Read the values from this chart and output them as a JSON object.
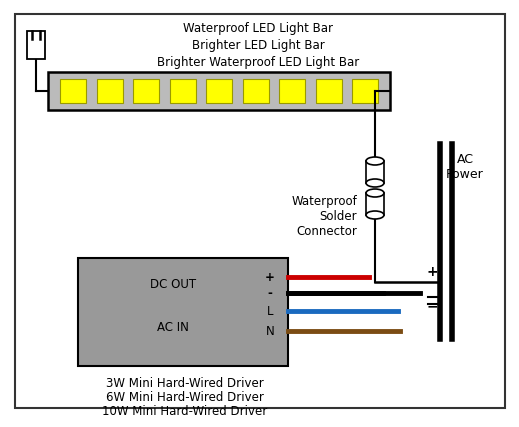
{
  "background_color": "#ffffff",
  "border_color": "#333333",
  "led_bar_label": [
    "Waterproof LED Light Bar",
    "Brighter LED Light Bar",
    "Brighter Waterproof LED Light Bar"
  ],
  "driver_label": [
    "3W Mini Hard-Wired Driver",
    "6W Mini Hard-Wired Driver",
    "10W Mini Hard-Wired Driver"
  ],
  "dc_out_label": "DC OUT",
  "ac_in_label": "AC IN",
  "driver_signs": [
    "+",
    "-",
    "L",
    "N"
  ],
  "ac_power_label": "AC\nPower",
  "waterproof_label": "Waterproof\nSolder\nConnector",
  "wire_colors": [
    "#cc0000",
    "#111111",
    "#1a6abf",
    "#7B4C13"
  ],
  "led_color": "#ffff00",
  "led_bar_fill": "#bbbbbb",
  "driver_fill": "#999999",
  "led_border_color": "#999900",
  "label_fontsize": 8.5,
  "inside_fontsize": 8.5
}
